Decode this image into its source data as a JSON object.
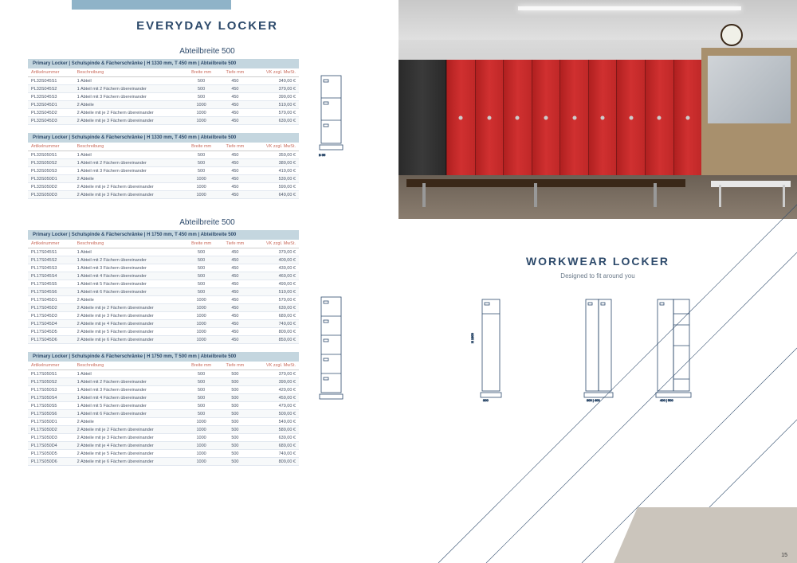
{
  "leftTitle": "EVERYDAY LOCKER",
  "subtitle1": "Abteilbreite 500",
  "subtitle2": "Abteilbreite 500",
  "colors": {
    "accent": "#2d4a6b",
    "headerBg": "#c4d6df",
    "thColor": "#c96b5c",
    "topBar": "#8fb3c8",
    "bottomStrip": "#cbc5bc"
  },
  "table1": {
    "caption": "Primary Locker | Schulspinde & Fächerschränke | H 1330 mm, T 450 mm | Abteilbreite 500",
    "cols": [
      "Artikelnummer",
      "Beschreibung",
      "Breite mm",
      "Tiefe mm",
      "VK zzgl. MwSt."
    ],
    "rows": [
      [
        "PL33S045S1",
        "1 Abteil",
        "500",
        "450",
        "349,00 €"
      ],
      [
        "PL33S045S2",
        "1 Abteil mit 2 Fächern übereinander",
        "500",
        "450",
        "379,00 €"
      ],
      [
        "PL33S045S3",
        "1 Abteil mit 3 Fächern übereinander",
        "500",
        "450",
        "399,00 €"
      ],
      [
        "PL33S045D1",
        "2 Abteile",
        "1000",
        "450",
        "519,00 €"
      ],
      [
        "PL33S045D2",
        "2 Abteile mit je 2 Fächern übereinander",
        "1000",
        "450",
        "579,00 €"
      ],
      [
        "PL33S045D3",
        "2 Abteile mit je 3 Fächern übereinander",
        "1000",
        "450",
        "639,00 €"
      ]
    ]
  },
  "table2": {
    "caption": "Primary Locker | Schulspinde & Fächerschränke | H 1330 mm, T 450 mm | Abteilbreite 500",
    "cols": [
      "Artikelnummer",
      "Beschreibung",
      "Breite mm",
      "Tiefe mm",
      "VK zzgl. MwSt."
    ],
    "rows": [
      [
        "PL33S050S1",
        "1 Abteil",
        "500",
        "450",
        "359,00 €"
      ],
      [
        "PL33S050S2",
        "1 Abteil mit 2 Fächern übereinander",
        "500",
        "450",
        "389,00 €"
      ],
      [
        "PL33S050S3",
        "1 Abteil mit 3 Fächern übereinander",
        "500",
        "450",
        "419,00 €"
      ],
      [
        "PL33S050D1",
        "2 Abteile",
        "1000",
        "450",
        "539,00 €"
      ],
      [
        "PL33S050D2",
        "2 Abteile mit je 2 Fächern übereinander",
        "1000",
        "450",
        "599,00 €"
      ],
      [
        "PL33S050D3",
        "2 Abteile mit je 3 Fächern übereinander",
        "1000",
        "450",
        "649,00 €"
      ]
    ]
  },
  "table3": {
    "caption": "Primary Locker | Schulspinde & Fächerschränke | H 1750 mm, T 450 mm | Abteilbreite 500",
    "cols": [
      "Artikelnummer",
      "Beschreibung",
      "Breite mm",
      "Tiefe mm",
      "VK zzgl. MwSt."
    ],
    "rows": [
      [
        "PL17S045S1",
        "1 Abteil",
        "500",
        "450",
        "379,00 €"
      ],
      [
        "PL17S045S2",
        "1 Abteil mit 2 Fächern übereinander",
        "500",
        "450",
        "409,00 €"
      ],
      [
        "PL17S045S3",
        "1 Abteil mit 3 Fächern übereinander",
        "500",
        "450",
        "439,00 €"
      ],
      [
        "PL17S045S4",
        "1 Abteil mit 4 Fächern übereinander",
        "500",
        "450",
        "469,00 €"
      ],
      [
        "PL17S045S5",
        "1 Abteil mit 5 Fächern übereinander",
        "500",
        "450",
        "499,00 €"
      ],
      [
        "PL17S045S6",
        "1 Abteil mit 6 Fächern übereinander",
        "500",
        "450",
        "519,00 €"
      ],
      [
        "PL17S045D1",
        "2 Abteile",
        "1000",
        "450",
        "579,00 €"
      ],
      [
        "PL17S045D2",
        "2 Abteile mit je 2 Fächern übereinander",
        "1000",
        "450",
        "639,00 €"
      ],
      [
        "PL17S045D3",
        "2 Abteile mit je 3 Fächern übereinander",
        "1000",
        "450",
        "689,00 €"
      ],
      [
        "PL17S045D4",
        "2 Abteile mit je 4 Fächern übereinander",
        "1000",
        "450",
        "749,00 €"
      ],
      [
        "PL17S045D5",
        "2 Abteile mit je 5 Fächern übereinander",
        "1000",
        "450",
        "809,00 €"
      ],
      [
        "PL17S045D6",
        "2 Abteile mit je 6 Fächern übereinander",
        "1000",
        "450",
        "859,00 €"
      ]
    ]
  },
  "table4": {
    "caption": "Primary Locker | Schulspinde & Fächerschränke | H 1750 mm, T 500 mm | Abteilbreite 500",
    "cols": [
      "Artikelnummer",
      "Beschreibung",
      "Breite mm",
      "Tiefe mm",
      "VK zzgl. MwSt."
    ],
    "rows": [
      [
        "PL17S050S1",
        "1 Abteil",
        "500",
        "500",
        "379,00 €"
      ],
      [
        "PL17S050S2",
        "1 Abteil mit 2 Fächern übereinander",
        "500",
        "500",
        "399,00 €"
      ],
      [
        "PL17S050S3",
        "1 Abteil mit 3 Fächern übereinander",
        "500",
        "500",
        "429,00 €"
      ],
      [
        "PL17S050S4",
        "1 Abteil mit 4 Fächern übereinander",
        "500",
        "500",
        "459,00 €"
      ],
      [
        "PL17S050S5",
        "1 Abteil mit 5 Fächern übereinander",
        "500",
        "500",
        "479,00 €"
      ],
      [
        "PL17S050S6",
        "1 Abteil mit 6 Fächern übereinander",
        "500",
        "500",
        "509,00 €"
      ],
      [
        "PL17S050D1",
        "2 Abteile",
        "1000",
        "500",
        "549,00 €"
      ],
      [
        "PL17S050D2",
        "2 Abteile mit je 2 Fächern übereinander",
        "1000",
        "500",
        "589,00 €"
      ],
      [
        "PL17S050D3",
        "2 Abteile mit je 3 Fächern übereinander",
        "1000",
        "500",
        "639,00 €"
      ],
      [
        "PL17S050D4",
        "2 Abteile mit je 4 Fächern übereinander",
        "1000",
        "500",
        "689,00 €"
      ],
      [
        "PL17S050D5",
        "2 Abteile mit je 5 Fächern übereinander",
        "1000",
        "500",
        "749,00 €"
      ],
      [
        "PL17S050D6",
        "2 Abteile mit je 6 Fächern übereinander",
        "1000",
        "500",
        "809,00 €"
      ]
    ]
  },
  "workwear": {
    "title": "WORKWEAR LOCKER",
    "subtitle": "Designed to fit around you"
  },
  "pageNumber": "15",
  "lockerDiagrams": {
    "stroke": "#2d4a6b",
    "strokeWidth": 0.8
  }
}
